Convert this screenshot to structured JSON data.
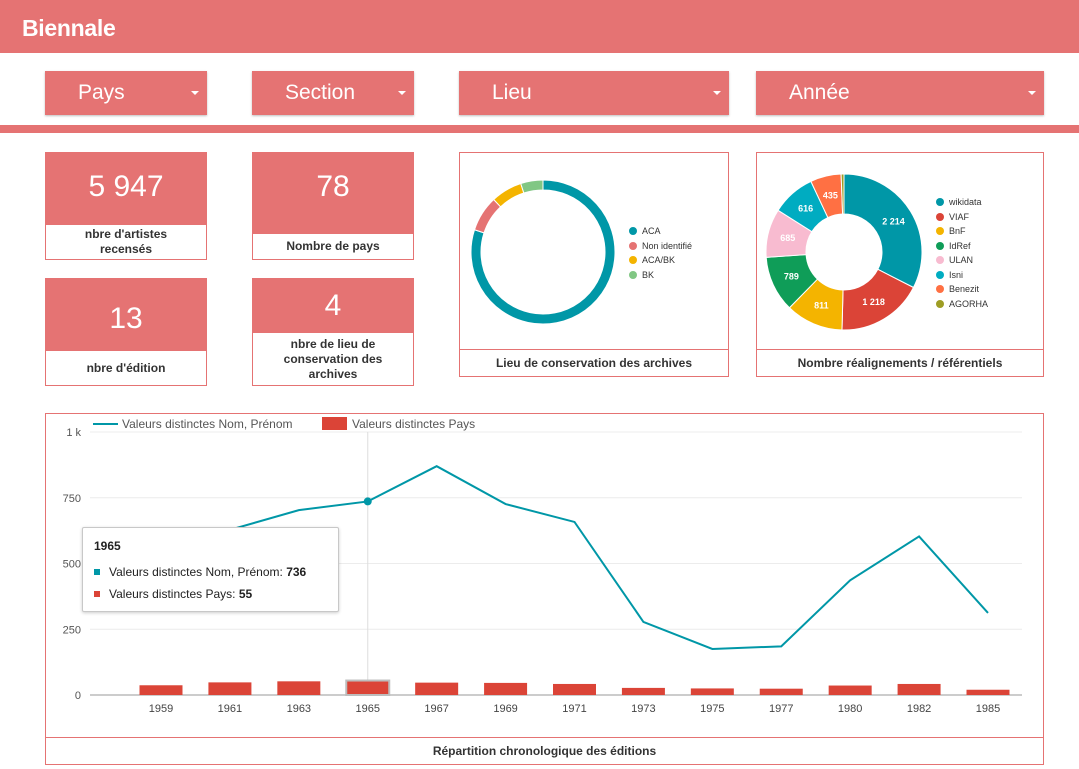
{
  "app": {
    "title": "Biennale"
  },
  "filters": [
    {
      "label": "Pays"
    },
    {
      "label": "Section"
    },
    {
      "label": "Lieu"
    },
    {
      "label": "Année"
    }
  ],
  "kpis": {
    "artistes": {
      "value": "5 947",
      "caption": "nbre d'artistes recensés"
    },
    "pays": {
      "value": "78",
      "caption": "Nombre de pays"
    },
    "editions": {
      "value": "13",
      "caption": "nbre d'édition"
    },
    "lieux": {
      "value": "4",
      "caption": "nbre de lieu de conservation des archives"
    }
  },
  "colors": {
    "accent": "#e57373",
    "teal": "#0097a7",
    "red": "#db4437"
  },
  "archives_chart": {
    "caption": "Lieu de conservation des archives",
    "chart_data": {
      "type": "pie",
      "donut": true,
      "labels": [
        "ACA",
        "Non identifié",
        "ACA/BK",
        "BK"
      ],
      "values": [
        80,
        8,
        7,
        5
      ],
      "colors": [
        "#0097a7",
        "#e57373",
        "#f4b400",
        "#81c784"
      ],
      "legend": "right"
    }
  },
  "realignments_chart": {
    "caption": "Nombre réalignements / référentiels",
    "chart_data": {
      "type": "pie",
      "donut": true,
      "labels": [
        "wikidata",
        "VIAF",
        "BnF",
        "IdRef",
        "ULAN",
        "Isni",
        "Benezit",
        "AGORHA"
      ],
      "values": [
        2214,
        1218,
        811,
        789,
        685,
        616,
        435,
        40
      ],
      "value_labels": [
        "2 214",
        "1 218",
        "811",
        "789",
        "685",
        "616",
        "435",
        ""
      ],
      "colors": [
        "#0097a7",
        "#db4437",
        "#f4b400",
        "#0f9d58",
        "#f8bbd0",
        "#00acc1",
        "#ff7043",
        "#9e9d24"
      ],
      "legend": "right"
    }
  },
  "timeline_chart": {
    "caption": "Répartition chronologique des éditions",
    "tooltip": {
      "title": "1965",
      "rows": [
        {
          "label": "Valeurs distinctes Nom, Prénom: ",
          "value": "736"
        },
        {
          "label": "Valeurs distinctes Pays: ",
          "value": "55"
        }
      ]
    },
    "chart_data": {
      "type": "line",
      "categories": [
        "1959",
        "1961",
        "1963",
        "1965",
        "1967",
        "1969",
        "1971",
        "1973",
        "1975",
        "1977",
        "1980",
        "1982",
        "1985"
      ],
      "series": [
        {
          "name": "Valeurs distinctes Nom, Prénom",
          "kind": "line",
          "values": [
            null,
            628,
            703,
            736,
            870,
            726,
            658,
            278,
            175,
            185,
            436,
            603,
            312
          ]
        },
        {
          "name": "Valeurs distinctes Pays",
          "kind": "bar",
          "values": [
            37,
            48,
            52,
            55,
            47,
            46,
            42,
            27,
            25,
            24,
            36,
            42,
            20
          ]
        }
      ],
      "y_ticks": [
        "0",
        "250",
        "500",
        "750",
        "1 k"
      ],
      "ylim": [
        0,
        1000
      ],
      "grid": true,
      "legend": "top-left",
      "highlight": "1965"
    }
  }
}
